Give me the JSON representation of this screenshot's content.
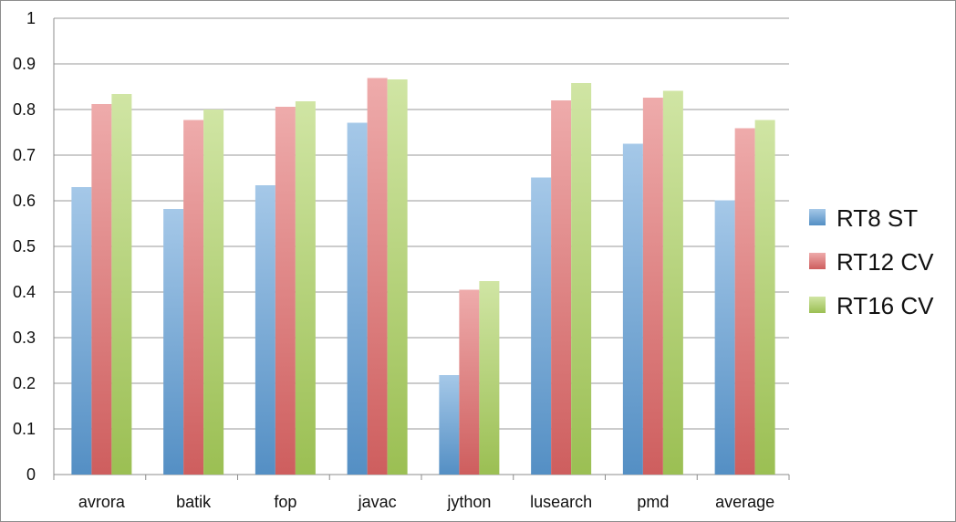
{
  "chart_data": {
    "type": "bar",
    "categories": [
      "avrora",
      "batik",
      "fop",
      "javac",
      "jython",
      "lusearch",
      "pmd",
      "average"
    ],
    "series": [
      {
        "name": "RT8 ST",
        "values": [
          0.63,
          0.582,
          0.634,
          0.771,
          0.218,
          0.651,
          0.725,
          0.601
        ],
        "color": "#5b9bd5"
      },
      {
        "name": "RT12 CV",
        "values": [
          0.812,
          0.777,
          0.806,
          0.869,
          0.405,
          0.82,
          0.826,
          0.759
        ],
        "color": "#e06666"
      },
      {
        "name": "RT16 CV",
        "values": [
          0.834,
          0.8,
          0.818,
          0.866,
          0.424,
          0.858,
          0.841,
          0.777
        ],
        "color": "#a9d05a"
      }
    ],
    "ylim": [
      0,
      1
    ],
    "yticks": [
      "0",
      "0.1",
      "0.2",
      "0.3",
      "0.4",
      "0.5",
      "0.6",
      "0.7",
      "0.8",
      "0.9",
      "1"
    ],
    "grid": true,
    "legend_position": "right"
  }
}
